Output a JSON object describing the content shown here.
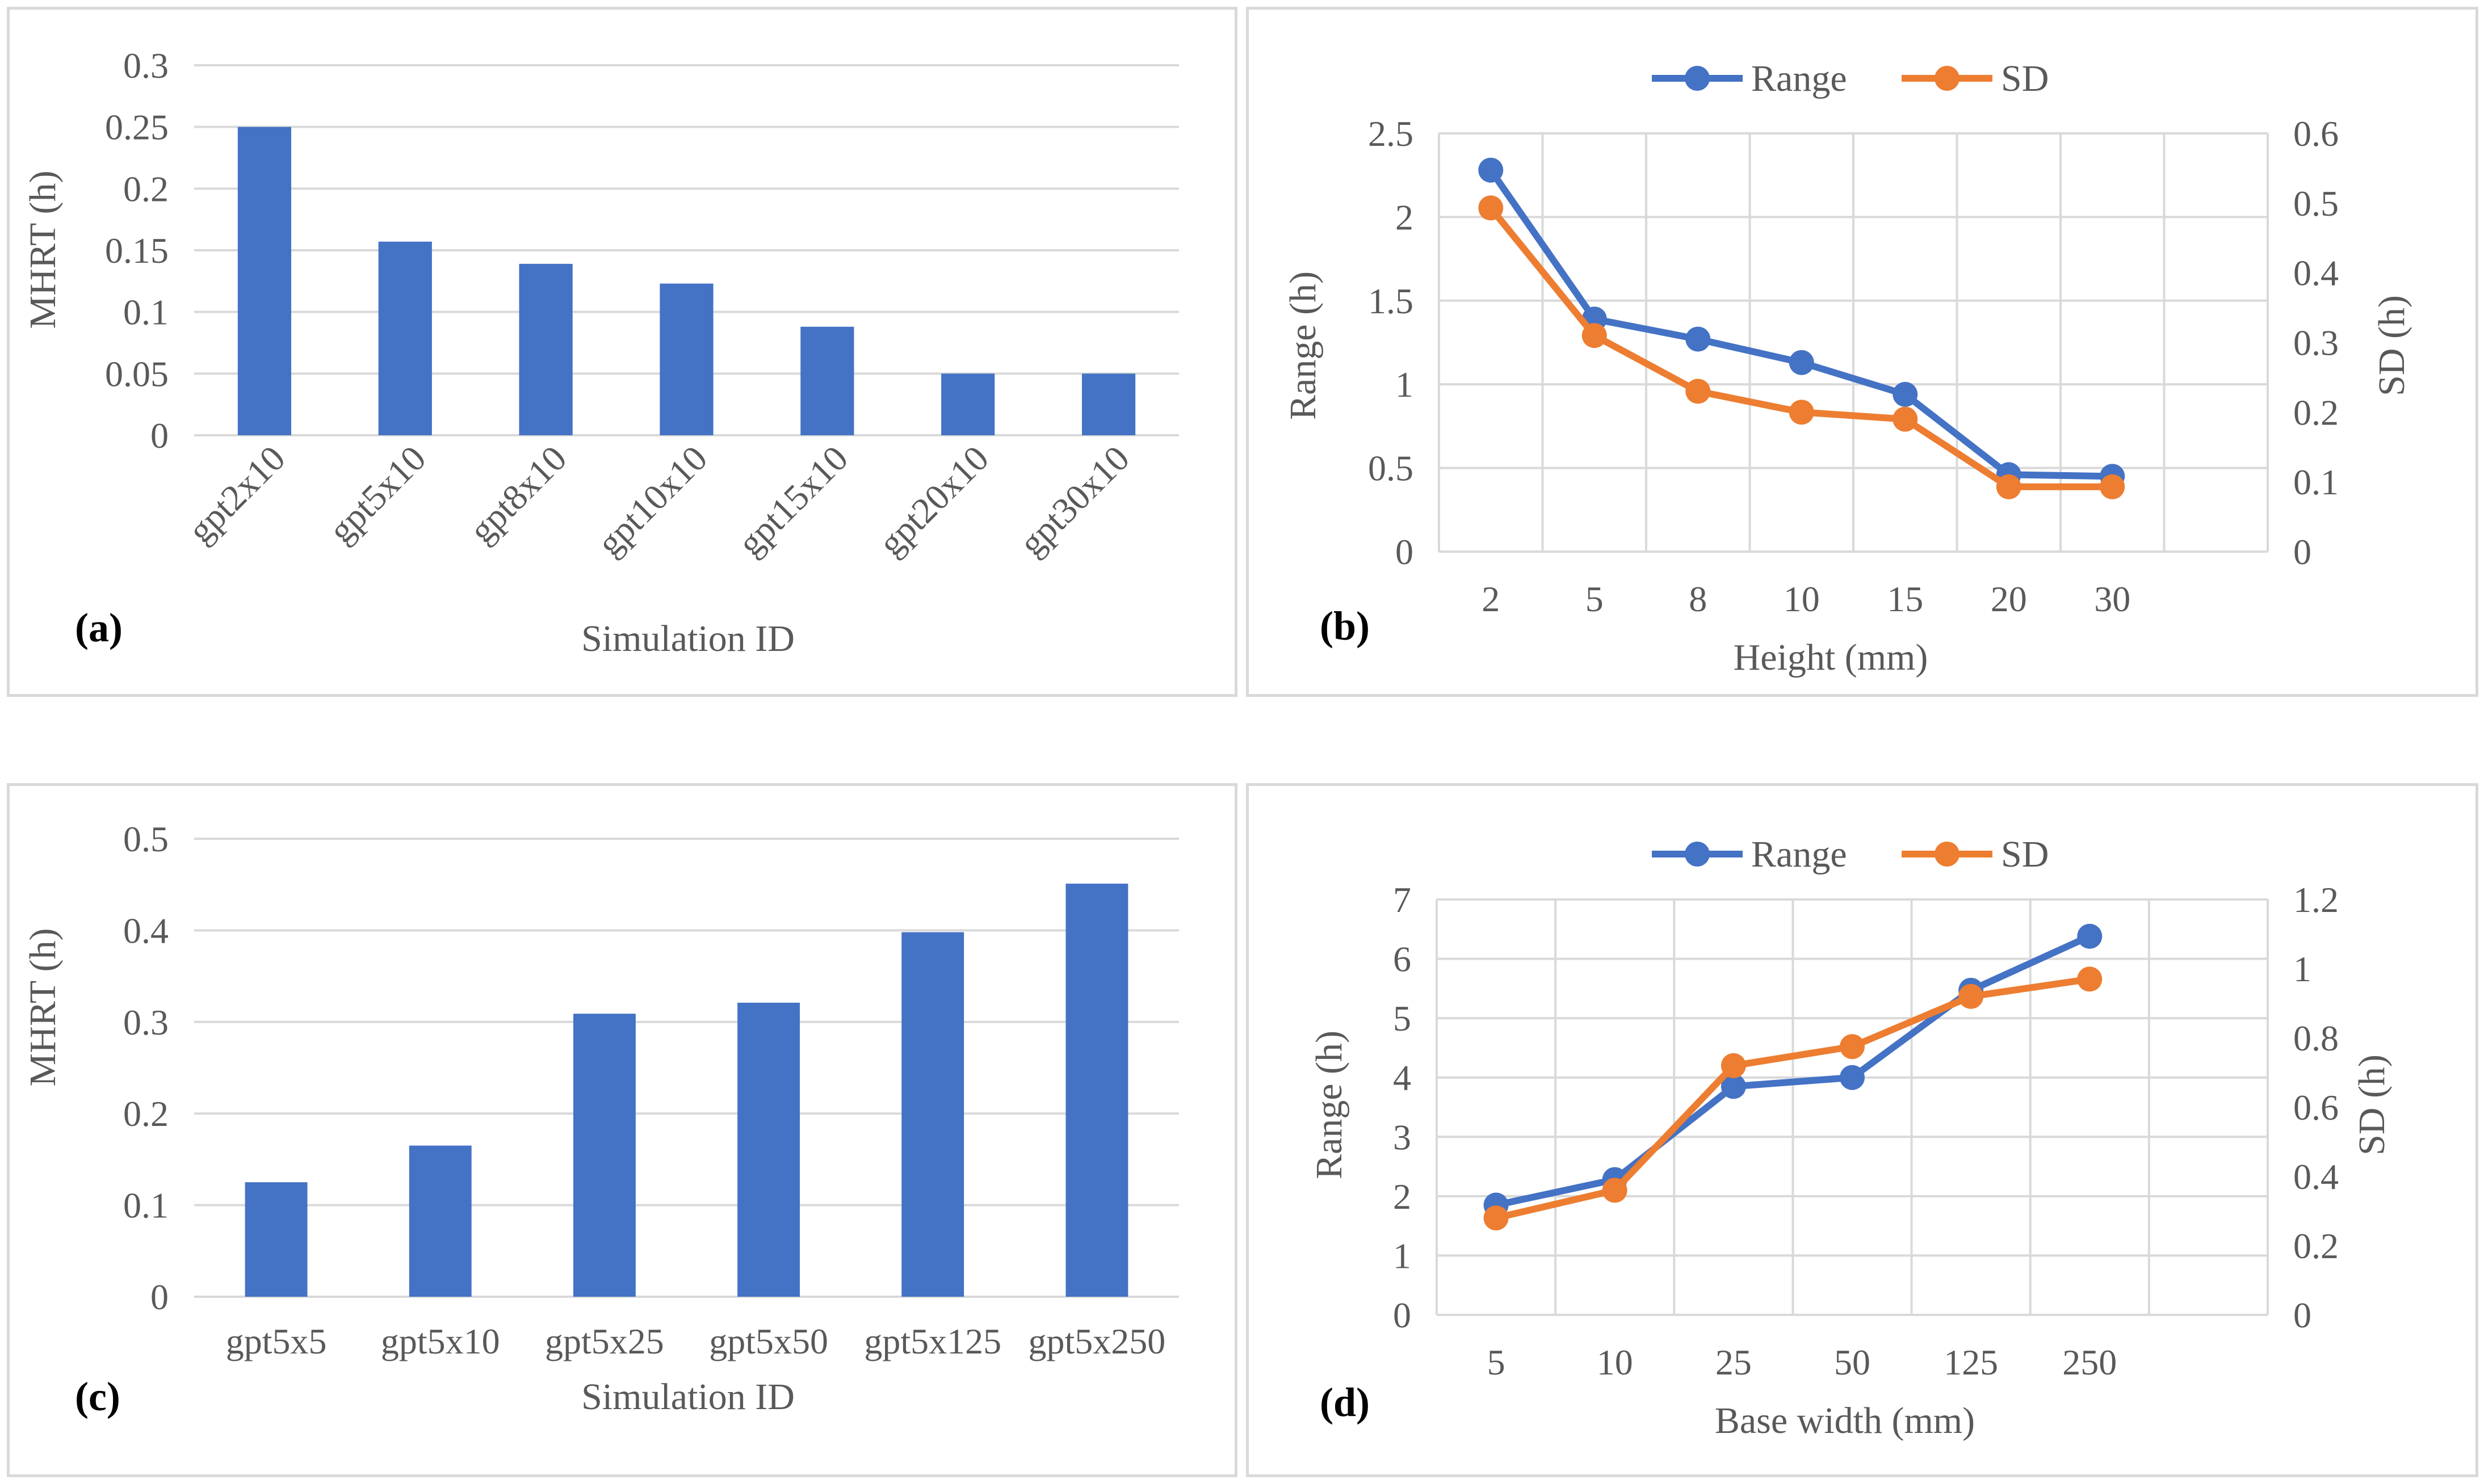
{
  "colors": {
    "range": "#4472c4",
    "sd": "#ed7d31",
    "bar": "#4472c4",
    "grid": "#d9d9d9",
    "text": "#595959"
  },
  "chart_data": [
    {
      "id": "a",
      "type": "bar",
      "panel_label": "(a)",
      "categories": [
        "gpt2x10",
        "gpt5x10",
        "gpt8x10",
        "gpt10x10",
        "gpt15x10",
        "gpt20x10",
        "gpt30x10"
      ],
      "values": [
        0.25,
        0.157,
        0.139,
        0.123,
        0.088,
        0.05,
        0.05
      ],
      "xlabel": "Simulation ID",
      "ylabel": "MHRT (h)",
      "ylim": [
        0,
        0.3
      ],
      "yticks": [
        "0",
        "0.05",
        "0.1",
        "0.15",
        "0.2",
        "0.25",
        "0.3"
      ],
      "grid": true
    },
    {
      "id": "b",
      "type": "line",
      "panel_label": "(b)",
      "categories": [
        "2",
        "5",
        "8",
        "10",
        "15",
        "20",
        "30"
      ],
      "series": [
        {
          "name": "Range",
          "axis": "left",
          "values": [
            2.28,
            1.39,
            1.27,
            1.13,
            0.94,
            0.46,
            0.45
          ]
        },
        {
          "name": "SD",
          "axis": "right",
          "values": [
            0.493,
            0.31,
            0.23,
            0.2,
            0.19,
            0.093,
            0.093
          ]
        }
      ],
      "xlabel": "Height (mm)",
      "ylabel": "Range (h)",
      "y2label": "SD (h)",
      "ylim": [
        0,
        2.5
      ],
      "y2lim": [
        0,
        0.6
      ],
      "yticks": [
        "0",
        "0.5",
        "1",
        "1.5",
        "2",
        "2.5"
      ],
      "y2ticks": [
        "0",
        "0.1",
        "0.2",
        "0.3",
        "0.4",
        "0.5",
        "0.6"
      ],
      "legend": "top",
      "grid": true
    },
    {
      "id": "c",
      "type": "bar",
      "panel_label": "(c)",
      "categories": [
        "gpt5x5",
        "gpt5x10",
        "gpt5x25",
        "gpt5x50",
        "gpt5x125",
        "gpt5x250"
      ],
      "values": [
        0.125,
        0.165,
        0.309,
        0.321,
        0.398,
        0.451
      ],
      "xlabel": "Simulation ID",
      "ylabel": "MHRT (h)",
      "ylim": [
        0,
        0.5
      ],
      "yticks": [
        "0",
        "0.1",
        "0.2",
        "0.3",
        "0.4",
        "0.5"
      ],
      "grid": true
    },
    {
      "id": "d",
      "type": "line",
      "panel_label": "(d)",
      "categories": [
        "5",
        "10",
        "25",
        "50",
        "125",
        "250"
      ],
      "series": [
        {
          "name": "Range",
          "axis": "left",
          "values": [
            1.85,
            2.28,
            3.85,
            4.0,
            5.47,
            6.38
          ]
        },
        {
          "name": "SD",
          "axis": "right",
          "values": [
            0.28,
            0.36,
            0.72,
            0.775,
            0.92,
            0.97
          ]
        }
      ],
      "xlabel": "Base width (mm)",
      "ylabel": "Range (h)",
      "y2label": "SD (h)",
      "ylim": [
        0,
        7
      ],
      "y2lim": [
        0,
        1.2
      ],
      "yticks": [
        "0",
        "1",
        "2",
        "3",
        "4",
        "5",
        "6",
        "7"
      ],
      "y2ticks": [
        "0",
        "0.2",
        "0.4",
        "0.6",
        "0.8",
        "1",
        "1.2"
      ],
      "legend": "top",
      "grid": true
    }
  ]
}
